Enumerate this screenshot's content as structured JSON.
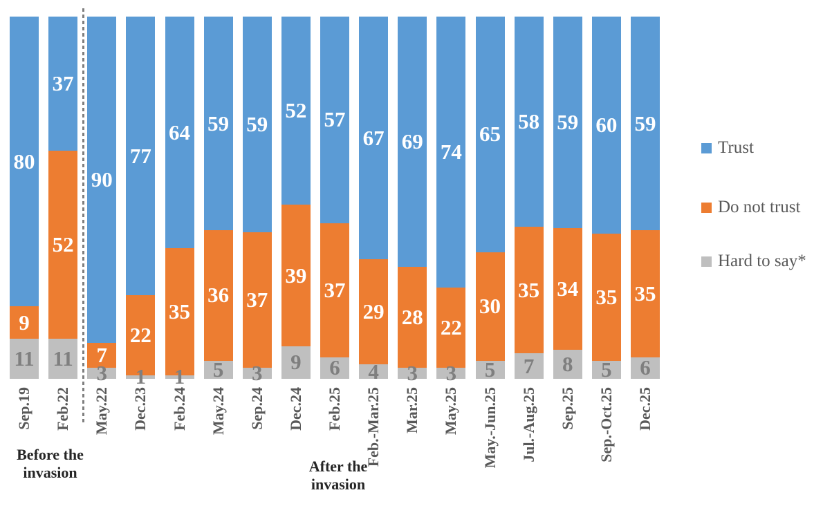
{
  "chart_data": {
    "type": "bar",
    "stacked": true,
    "percent_stacked": true,
    "orientation": "vertical",
    "grid": false,
    "axes_visible": false,
    "legend_position": "right",
    "ylim": [
      0,
      100
    ],
    "categories": [
      "Sep.19",
      "Feb.22",
      "May.22",
      "Dec.23",
      "Feb.24",
      "May.24",
      "Sep.24",
      "Dec.24",
      "Feb.25",
      "Feb.-Mar.25",
      "Mar.25",
      "May.25",
      "May.-Jun.25",
      "Jul.-Aug.25",
      "Sep.25",
      "Sep.-Oct.25",
      "Dec.25"
    ],
    "series": [
      {
        "name": "Trust",
        "color": "#5B9BD5",
        "label_color": "#FFFFFF",
        "values": [
          80,
          37,
          90,
          77,
          64,
          59,
          59,
          52,
          57,
          67,
          69,
          74,
          65,
          58,
          59,
          60,
          59
        ]
      },
      {
        "name": "Do not trust",
        "color": "#ED7D31",
        "label_color": "#FFFFFF",
        "values": [
          9,
          52,
          7,
          22,
          35,
          36,
          37,
          39,
          37,
          29,
          28,
          22,
          30,
          35,
          34,
          35,
          35
        ]
      },
      {
        "name": "Hard to say*",
        "color": "#BFBFBF",
        "label_color": "#7F7F7F",
        "values": [
          11,
          11,
          3,
          1,
          1,
          5,
          3,
          9,
          6,
          4,
          3,
          3,
          5,
          7,
          8,
          5,
          6
        ]
      }
    ],
    "annotations": {
      "before_group": "Before the\ninvasion",
      "after_group": "After the\ninvasion",
      "divider_after_category": "Feb.22",
      "divider_color": "#7F7F7F"
    }
  }
}
